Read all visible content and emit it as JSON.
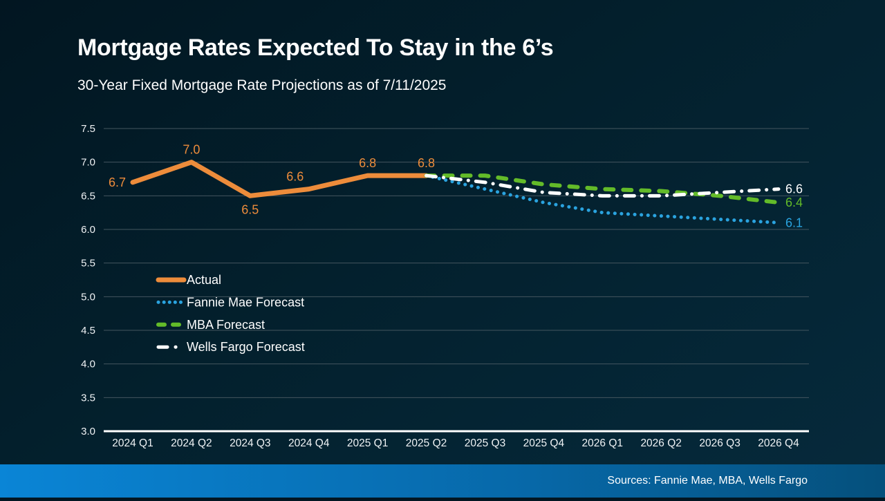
{
  "slide": {
    "title": "Mortgage Rates Expected To Stay in the 6’s",
    "subtitle": "30-Year Fixed Mortgage Rate Projections as of 7/11/2025",
    "sources": "Sources: Fannie Mae, MBA, Wells Fargo"
  },
  "colors": {
    "background_top": "#021621",
    "background_bottom": "#062a3c",
    "gridline": "#44565f",
    "axis_line": "#ffffff",
    "tick_label": "#f0f3f5",
    "legend_text": "#ffffff",
    "actual": "#ED8C3B",
    "fannie_mae": "#2AA3DF",
    "mba": "#63BB29",
    "wells_fargo": "#FFFFFF",
    "footer_gradient_left": "#0A85D6",
    "footer_gradient_right": "#05507C"
  },
  "chart_data": {
    "type": "line",
    "title": "30-Year Fixed Mortgage Rate Projections as of 7/11/2025",
    "xlabel": "",
    "ylabel": "",
    "ylim": [
      3.0,
      7.5
    ],
    "ytick_step": 0.5,
    "yticks": [
      "7.5",
      "7.0",
      "6.5",
      "6.0",
      "5.5",
      "5.0",
      "4.5",
      "4.0",
      "3.5",
      "3.0"
    ],
    "grid": "horizontal",
    "legend_position": "inside-left",
    "categories": [
      "2024 Q1",
      "2024 Q2",
      "2024 Q3",
      "2024 Q4",
      "2025 Q1",
      "2025 Q2",
      "2025 Q3",
      "2025 Q4",
      "2026 Q1",
      "2026 Q2",
      "2026 Q3",
      "2026 Q4"
    ],
    "series": [
      {
        "name": "Actual",
        "style": "solid",
        "color_key": "actual",
        "x_start_index": 0,
        "values": [
          6.7,
          7.0,
          6.5,
          6.6,
          6.8,
          6.8
        ],
        "point_labels": [
          "6.7",
          "7.0",
          "6.5",
          "6.6",
          "6.8",
          "6.8"
        ],
        "label_positions": [
          "left",
          "above",
          "below",
          "above-left",
          "above",
          "above"
        ]
      },
      {
        "name": "Fannie Mae Forecast",
        "style": "dotted",
        "color_key": "fannie_mae",
        "x_start_index": 5,
        "values": [
          6.8,
          6.6,
          6.4,
          6.25,
          6.2,
          6.15,
          6.1
        ],
        "end_label": "6.1"
      },
      {
        "name": "MBA Forecast",
        "style": "dashed",
        "color_key": "mba",
        "x_start_index": 5,
        "values": [
          6.8,
          6.8,
          6.67,
          6.6,
          6.57,
          6.5,
          6.4
        ],
        "end_label": "6.4"
      },
      {
        "name": "Wells Fargo Forecast",
        "style": "dashdot",
        "color_key": "wells_fargo",
        "x_start_index": 5,
        "values": [
          6.8,
          6.7,
          6.55,
          6.5,
          6.5,
          6.55,
          6.6
        ],
        "end_label": "6.6"
      }
    ]
  }
}
